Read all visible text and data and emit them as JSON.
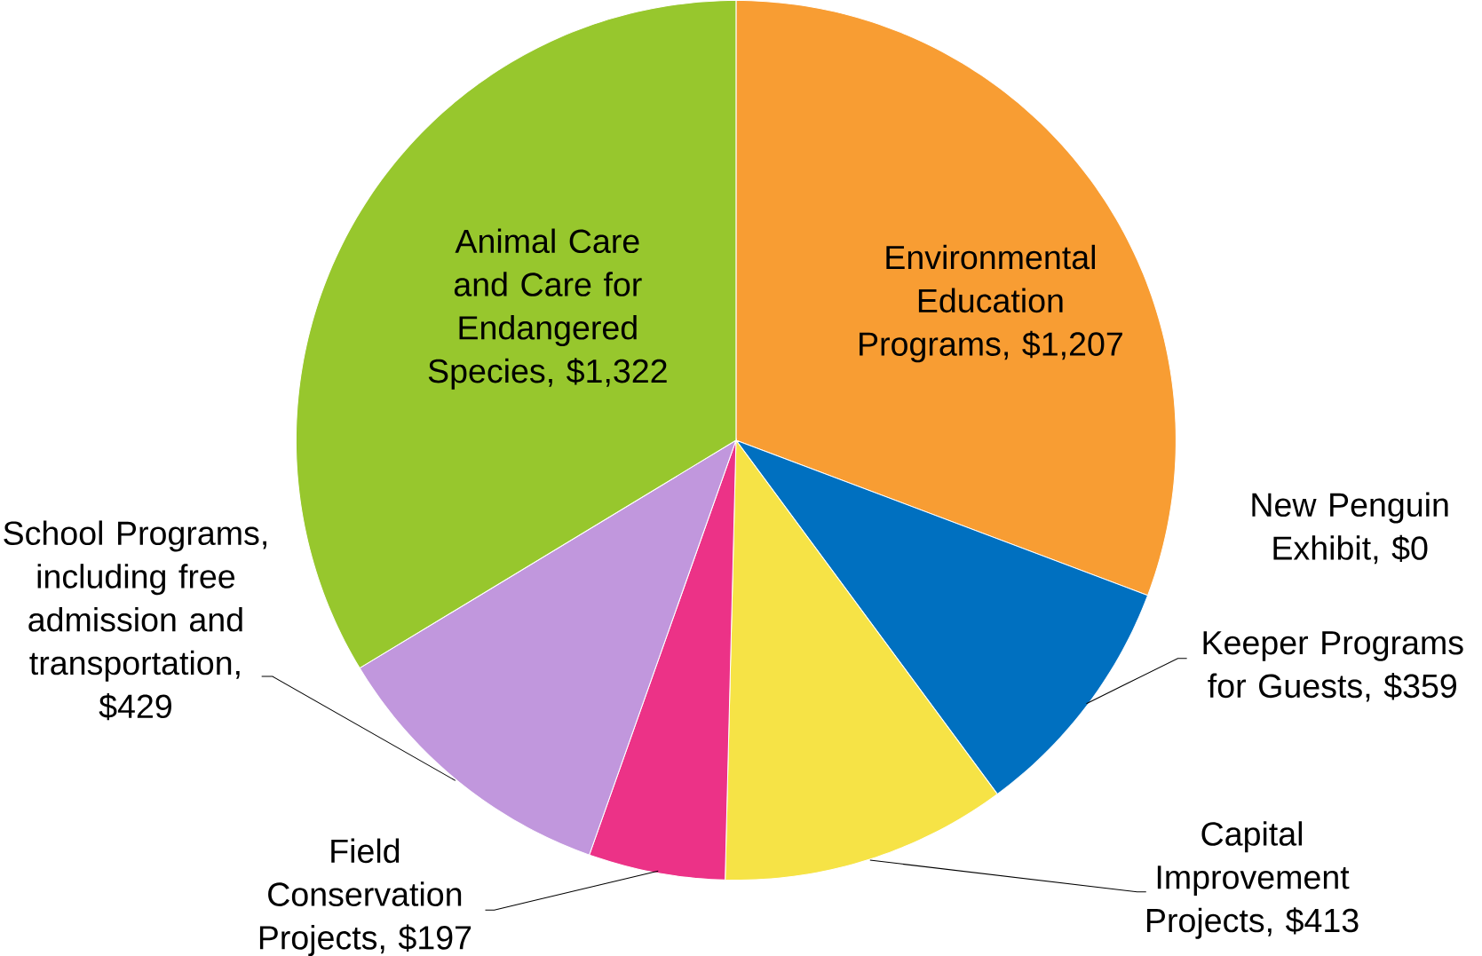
{
  "chart_data": {
    "type": "pie",
    "categories": [
      "Environmental Education Programs, $1,207",
      "New Penguin Exhibit, $0",
      "Keeper Programs for Guests, $359",
      "Capital Improvement Projects, $413",
      "Field Conservation Projects, $197",
      "School Programs, including free admission and transportation, $429",
      "Animal Care and Care for Endangered Species, $1,322"
    ],
    "values": [
      1207,
      0,
      359,
      413,
      197,
      429,
      1322
    ],
    "colors": [
      "#f89d33",
      "#7f7f7f",
      "#0070c0",
      "#f6e346",
      "#ec3287",
      "#c197dd",
      "#97c72d"
    ]
  }
}
